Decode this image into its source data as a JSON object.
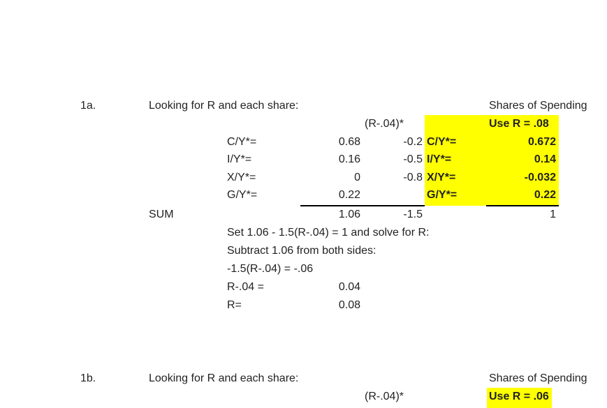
{
  "part_a": {
    "number": "1a.",
    "heading": "Looking for R and each share:",
    "shares_header": "Shares of Spending",
    "coef_header": "(R-.04)*",
    "use_r": "Use R = .08",
    "rows": [
      {
        "label": "C/Y*=",
        "value": "0.68",
        "coef": "-0.2",
        "share_label": "C/Y*=",
        "share": "0.672"
      },
      {
        "label": "I/Y*=",
        "value": "0.16",
        "coef": "-0.5",
        "share_label": "I/Y*=",
        "share": "0.14"
      },
      {
        "label": "X/Y*=",
        "value": "0",
        "coef": "-0.8",
        "share_label": "X/Y*=",
        "share": "-0.032"
      },
      {
        "label": "G/Y*=",
        "value": "0.22",
        "coef": "",
        "share_label": "G/Y*=",
        "share": "0.22"
      }
    ],
    "sum_label": "SUM",
    "sum_value": "1.06",
    "sum_coef": "-1.5",
    "sum_share": "1",
    "steps": [
      {
        "text": "Set 1.06 - 1.5(R-.04)  = 1 and solve for R:",
        "value": ""
      },
      {
        "text": "Subtract 1.06 from both sides:",
        "value": ""
      },
      {
        "text": "-1.5(R-.04) = -.06",
        "value": ""
      },
      {
        "text": "R-.04 =",
        "value": "0.04"
      },
      {
        "text": "R=",
        "value": "0.08"
      }
    ],
    "highlight_color": "#ffff00"
  },
  "part_b": {
    "number": "1b.",
    "heading": "Looking for R and each share:",
    "shares_header": "Shares of Spending",
    "coef_header": "(R-.04)*",
    "use_r": "Use R = .06"
  }
}
